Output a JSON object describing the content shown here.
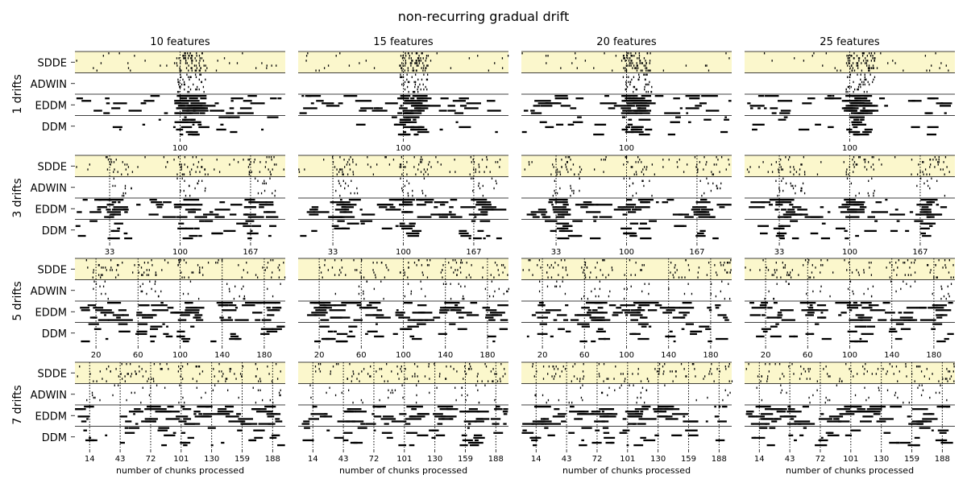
{
  "suptitle": "non-recurring gradual drift",
  "detectors": [
    "SDDE",
    "ADWIN",
    "EDDM",
    "DDM"
  ],
  "highlight_color": "#fbf7cc",
  "x_axis_label": "number of chunks processed",
  "chart_data": {
    "type": "heatmap",
    "title": "non-recurring gradual drift",
    "xlabel": "number of chunks processed",
    "xlim": [
      0,
      200
    ],
    "columns": [
      "10 features",
      "15 features",
      "20 features",
      "25 features"
    ],
    "rows": [
      {
        "label": "1 drifts",
        "drift_points": [
          100
        ],
        "xticks": [
          100
        ]
      },
      {
        "label": "3 drifts",
        "drift_points": [
          33,
          100,
          167
        ],
        "xticks": [
          33,
          100,
          167
        ]
      },
      {
        "label": "5 drifts",
        "drift_points": [
          20,
          60,
          100,
          140,
          180
        ],
        "xticks": [
          20,
          60,
          100,
          140,
          180
        ]
      },
      {
        "label": "7 drifts",
        "drift_points": [
          14,
          43,
          72,
          101,
          130,
          159,
          188
        ],
        "xticks": [
          14,
          43,
          72,
          101,
          130,
          159,
          188
        ]
      }
    ],
    "detectors": [
      "SDDE",
      "ADWIN",
      "EDDM",
      "DDM"
    ],
    "highlighted_detector": "SDDE",
    "marker_color": "#000000",
    "drift_line_style": "dotted"
  }
}
